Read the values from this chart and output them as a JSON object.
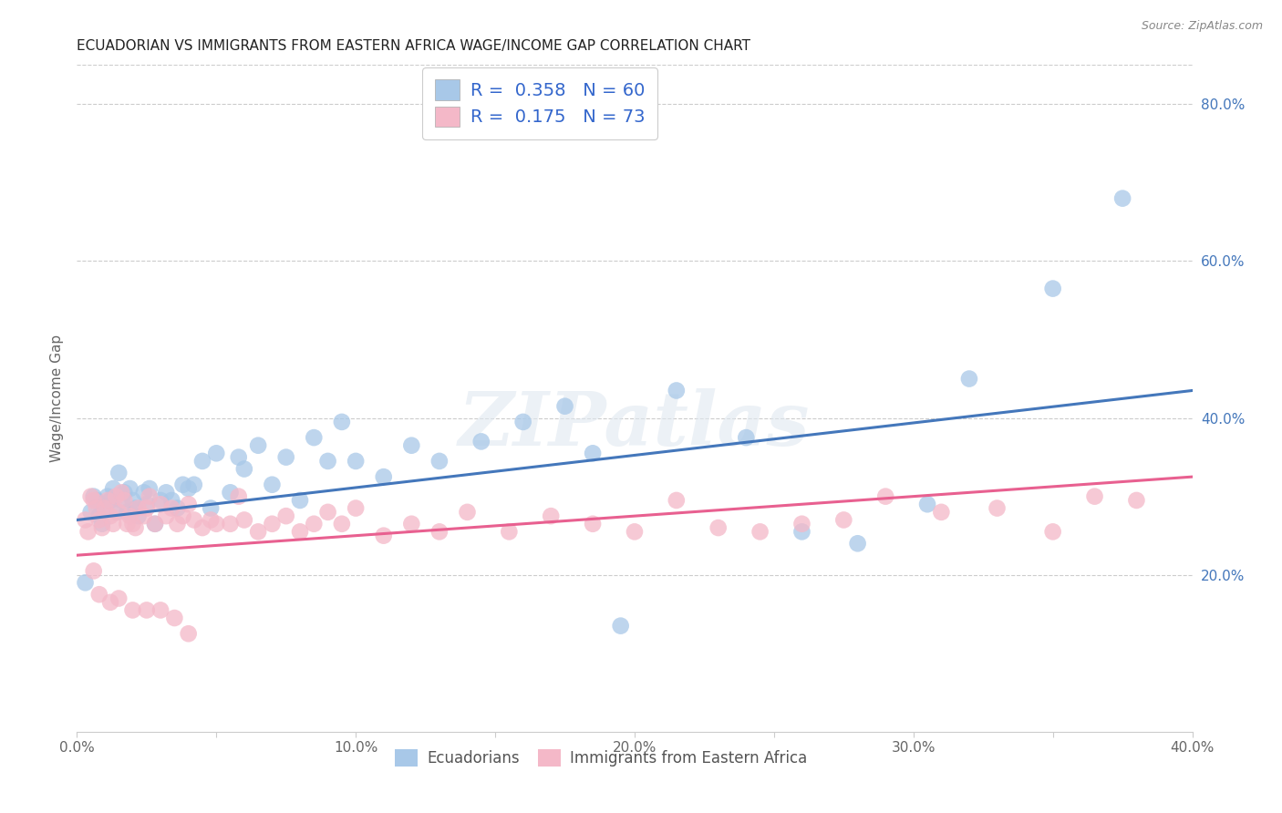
{
  "title": "ECUADORIAN VS IMMIGRANTS FROM EASTERN AFRICA WAGE/INCOME GAP CORRELATION CHART",
  "source": "Source: ZipAtlas.com",
  "ylabel": "Wage/Income Gap",
  "xlim": [
    0.0,
    0.4
  ],
  "ylim": [
    0.0,
    0.85
  ],
  "xtick_labels": [
    "0.0%",
    "",
    "10.0%",
    "",
    "20.0%",
    "",
    "30.0%",
    "",
    "40.0%"
  ],
  "xtick_vals": [
    0.0,
    0.05,
    0.1,
    0.15,
    0.2,
    0.25,
    0.3,
    0.35,
    0.4
  ],
  "ytick_labels": [
    "20.0%",
    "40.0%",
    "60.0%",
    "80.0%"
  ],
  "ytick_vals": [
    0.2,
    0.4,
    0.6,
    0.8
  ],
  "blue_color": "#a8c8e8",
  "pink_color": "#f4b8c8",
  "line_blue": "#4477bb",
  "line_pink": "#e86090",
  "legend_text_color": "#3366cc",
  "R1": 0.358,
  "N1": 60,
  "R2": 0.175,
  "N2": 73,
  "blue_line_x0": 0.0,
  "blue_line_y0": 0.27,
  "blue_line_x1": 0.4,
  "blue_line_y1": 0.435,
  "pink_line_x0": 0.0,
  "pink_line_y0": 0.225,
  "pink_line_x1": 0.4,
  "pink_line_y1": 0.325,
  "blue_scatter_x": [
    0.003,
    0.005,
    0.006,
    0.007,
    0.008,
    0.009,
    0.01,
    0.011,
    0.012,
    0.013,
    0.014,
    0.015,
    0.016,
    0.017,
    0.018,
    0.019,
    0.02,
    0.021,
    0.022,
    0.024,
    0.025,
    0.026,
    0.028,
    0.03,
    0.032,
    0.034,
    0.036,
    0.038,
    0.04,
    0.042,
    0.045,
    0.048,
    0.05,
    0.055,
    0.058,
    0.06,
    0.065,
    0.07,
    0.075,
    0.08,
    0.085,
    0.09,
    0.095,
    0.1,
    0.11,
    0.12,
    0.13,
    0.145,
    0.16,
    0.175,
    0.185,
    0.195,
    0.215,
    0.24,
    0.26,
    0.28,
    0.305,
    0.32,
    0.35,
    0.375
  ],
  "blue_scatter_y": [
    0.19,
    0.28,
    0.3,
    0.295,
    0.275,
    0.265,
    0.285,
    0.3,
    0.295,
    0.31,
    0.28,
    0.33,
    0.295,
    0.305,
    0.28,
    0.31,
    0.295,
    0.285,
    0.275,
    0.305,
    0.29,
    0.31,
    0.265,
    0.295,
    0.305,
    0.295,
    0.285,
    0.315,
    0.31,
    0.315,
    0.345,
    0.285,
    0.355,
    0.305,
    0.35,
    0.335,
    0.365,
    0.315,
    0.35,
    0.295,
    0.375,
    0.345,
    0.395,
    0.345,
    0.325,
    0.365,
    0.345,
    0.37,
    0.395,
    0.415,
    0.355,
    0.135,
    0.435,
    0.375,
    0.255,
    0.24,
    0.29,
    0.45,
    0.565,
    0.68
  ],
  "pink_scatter_x": [
    0.003,
    0.005,
    0.006,
    0.007,
    0.008,
    0.009,
    0.01,
    0.011,
    0.012,
    0.013,
    0.014,
    0.015,
    0.016,
    0.017,
    0.018,
    0.019,
    0.02,
    0.021,
    0.022,
    0.024,
    0.025,
    0.026,
    0.028,
    0.03,
    0.032,
    0.034,
    0.036,
    0.038,
    0.04,
    0.042,
    0.045,
    0.048,
    0.05,
    0.055,
    0.058,
    0.06,
    0.065,
    0.07,
    0.075,
    0.08,
    0.085,
    0.09,
    0.095,
    0.1,
    0.11,
    0.12,
    0.13,
    0.14,
    0.155,
    0.17,
    0.185,
    0.2,
    0.215,
    0.23,
    0.245,
    0.26,
    0.275,
    0.29,
    0.31,
    0.33,
    0.35,
    0.365,
    0.38,
    0.004,
    0.006,
    0.008,
    0.012,
    0.015,
    0.02,
    0.025,
    0.03,
    0.035,
    0.04
  ],
  "pink_scatter_y": [
    0.27,
    0.3,
    0.295,
    0.285,
    0.27,
    0.26,
    0.285,
    0.295,
    0.275,
    0.265,
    0.3,
    0.28,
    0.305,
    0.295,
    0.265,
    0.275,
    0.265,
    0.26,
    0.285,
    0.275,
    0.285,
    0.3,
    0.265,
    0.29,
    0.275,
    0.285,
    0.265,
    0.275,
    0.29,
    0.27,
    0.26,
    0.27,
    0.265,
    0.265,
    0.3,
    0.27,
    0.255,
    0.265,
    0.275,
    0.255,
    0.265,
    0.28,
    0.265,
    0.285,
    0.25,
    0.265,
    0.255,
    0.28,
    0.255,
    0.275,
    0.265,
    0.255,
    0.295,
    0.26,
    0.255,
    0.265,
    0.27,
    0.3,
    0.28,
    0.285,
    0.255,
    0.3,
    0.295,
    0.255,
    0.205,
    0.175,
    0.165,
    0.17,
    0.155,
    0.155,
    0.155,
    0.145,
    0.125
  ],
  "watermark": "ZIPatlas",
  "legend1_label": "Ecuadorians",
  "legend2_label": "Immigrants from Eastern Africa"
}
